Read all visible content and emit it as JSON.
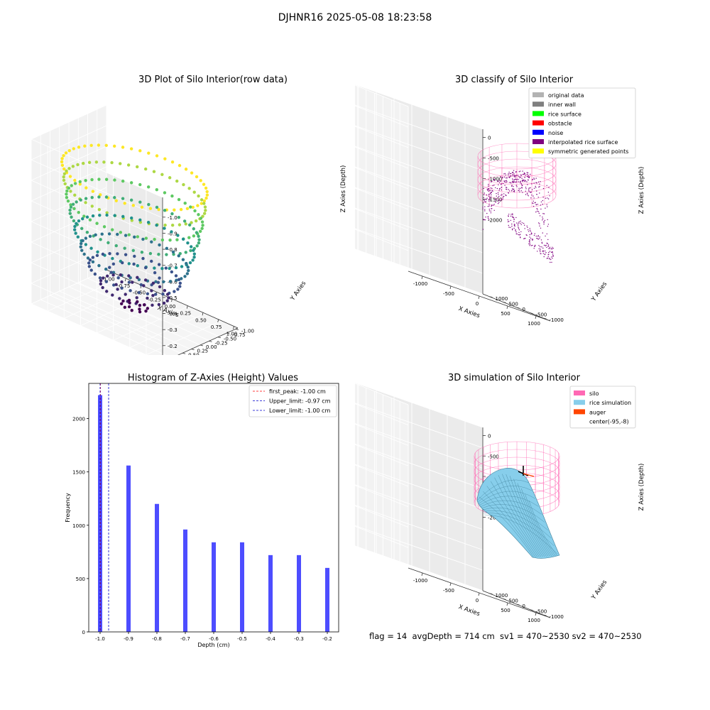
{
  "suptitle": "DJHNR16 2025-05-08 18:23:58",
  "status_line": "flag = 14  avgDepth = 714 cm  sv1 = 470~2530 sv2 = 470~2530",
  "chart_data": [
    {
      "type": "scatter",
      "title": "3D Plot of Silo Interior(row data)",
      "xlabel": "X Axies",
      "ylabel": "Y Axies",
      "zlabel": "Z Axies (Depth)",
      "xlim": [
        -1.0,
        1.0
      ],
      "ylim": [
        -1.0,
        1.0
      ],
      "zlim": [
        -1.0,
        -0.2
      ],
      "xticks": [
        "-1.00",
        "-0.75",
        "-0.50",
        "-0.25",
        "0.00",
        "0.25",
        "0.50",
        "0.75",
        "1.00"
      ],
      "yticks": [
        "-1.00",
        "-0.75",
        "-0.50",
        "-0.25",
        "0.00",
        "0.25",
        "0.50",
        "0.75",
        "1.00"
      ],
      "zticks": [
        "-0.2",
        "-0.3",
        "-0.4",
        "-0.5",
        "-0.6",
        "-0.7",
        "-0.8",
        "-0.9",
        "-1.0"
      ],
      "colormap": "viridis",
      "z_levels": [
        -1.0,
        -0.9,
        -0.8,
        -0.7,
        -0.6,
        -0.5,
        -0.4,
        -0.3,
        -0.2
      ]
    },
    {
      "type": "scatter",
      "title": "3D classify of Silo Interior",
      "xlabel": "X Axies",
      "ylabel": "Y Axies",
      "zlabel": "Z Axies (Depth)",
      "xticks": [
        "-1000",
        "-500",
        "0",
        "500",
        "1000"
      ],
      "yticks": [
        "-1000",
        "-500",
        "0",
        "500",
        "1000"
      ],
      "zticks": [
        "0",
        "-500",
        "-1000",
        "-1500",
        "-2000"
      ],
      "legend_position": "top-right",
      "legend": [
        {
          "label": "original data",
          "color": "#b3b3b3"
        },
        {
          "label": "inner wall",
          "color": "#808080"
        },
        {
          "label": "rice surface",
          "color": "#00ff00"
        },
        {
          "label": "obstacle",
          "color": "#ff0000"
        },
        {
          "label": "noise",
          "color": "#0000ff"
        },
        {
          "label": "interpolated rice surface",
          "color": "#800080"
        },
        {
          "label": "symmetric generated points",
          "color": "#ffff00"
        }
      ]
    },
    {
      "type": "bar",
      "title": "Histogram of Z-Axies (Height) Values",
      "xlabel": "Depth (cm)",
      "ylabel": "Frequency",
      "x": [
        -1.0,
        -0.9,
        -0.8,
        -0.7,
        -0.6,
        -0.5,
        -0.4,
        -0.3,
        -0.2
      ],
      "values": [
        2220,
        1560,
        1200,
        960,
        840,
        840,
        720,
        720,
        600
      ],
      "xlim": [
        -1.04,
        -0.16
      ],
      "ylim": [
        0,
        2330
      ],
      "xticks": [
        "-1.0",
        "-0.9",
        "-0.8",
        "-0.7",
        "-0.6",
        "-0.5",
        "-0.4",
        "-0.3",
        "-0.2"
      ],
      "yticks": [
        "0",
        "500",
        "1000",
        "1500",
        "2000"
      ],
      "bar_color": "#4d4dff",
      "vlines": [
        {
          "label": "first_peak: -1.00 cm",
          "x": -1.0,
          "color": "#ff0000"
        },
        {
          "label": "Upper_limit: -0.97 cm",
          "x": -0.97,
          "color": "#0000cc"
        },
        {
          "label": "Lower_limit: -1.00 cm",
          "x": -1.0,
          "color": "#0000cc"
        }
      ],
      "legend_position": "top-right"
    },
    {
      "type": "surface",
      "title": "3D simulation of Silo Interior",
      "xlabel": "X Axies",
      "ylabel": "Y Axies",
      "zlabel": "Z Axies (Depth)",
      "xticks": [
        "-1000",
        "-500",
        "0",
        "500",
        "1000"
      ],
      "yticks": [
        "-1000",
        "-500",
        "0",
        "500",
        "1000"
      ],
      "zticks": [
        "0",
        "-500",
        "-1000",
        "-1500",
        "-2000"
      ],
      "legend_position": "top-right",
      "legend": [
        {
          "label": "silo",
          "color": "#ff69b4"
        },
        {
          "label": "rice simulation",
          "color": "#87ceeb"
        },
        {
          "label": "auger",
          "color": "#ff4500"
        },
        {
          "label": "center(-95,-8)",
          "color": ""
        }
      ]
    }
  ]
}
